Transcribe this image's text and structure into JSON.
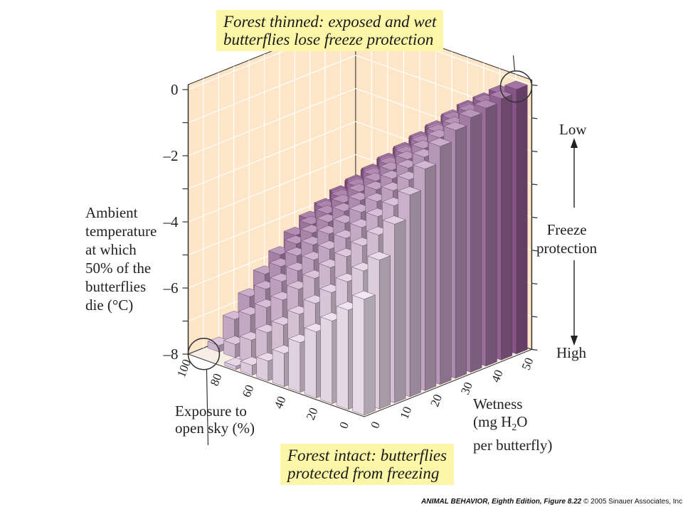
{
  "chart_data": {
    "type": "bar3d",
    "title": "",
    "y_axis": {
      "label_lines": [
        "Ambient",
        "temperature",
        "at which",
        "50% of the",
        "butterflies",
        "die (°C)"
      ],
      "ticks": [
        "0",
        "–2",
        "–4",
        "–6",
        "–8"
      ],
      "range": [
        -8,
        0
      ]
    },
    "x_axis": {
      "label_lines": [
        "Exposure to",
        "open sky (%)"
      ],
      "ticks": [
        "100",
        "80",
        "60",
        "40",
        "20",
        "0"
      ],
      "categories": [
        100,
        90,
        80,
        70,
        60,
        50,
        40,
        30,
        20,
        10,
        0
      ]
    },
    "z_axis": {
      "label_lines": [
        "Wetness",
        "(mg H",
        "2",
        "O",
        "per butterfly)"
      ],
      "ticks": [
        "0",
        "10",
        "20",
        "30",
        "40",
        "50"
      ],
      "categories": [
        0,
        5,
        10,
        15,
        20,
        25,
        30,
        35,
        40,
        45,
        50
      ]
    },
    "values_note_free": true,
    "values": [
      [
        -4.5,
        -3.5,
        -2.6,
        -1.9,
        -1.3,
        -0.8,
        -0.5,
        -0.3,
        -0.2,
        -0.1,
        0.0
      ],
      [
        -5.0,
        -4.0,
        -3.1,
        -2.4,
        -1.8,
        -1.3,
        -0.9,
        -0.7,
        -0.5,
        -0.4,
        -0.3
      ],
      [
        -5.5,
        -4.5,
        -3.6,
        -2.9,
        -2.3,
        -1.8,
        -1.4,
        -1.1,
        -0.9,
        -0.8,
        -0.7
      ],
      [
        -6.0,
        -5.0,
        -4.1,
        -3.4,
        -2.8,
        -2.3,
        -1.9,
        -1.6,
        -1.4,
        -1.2,
        -1.1
      ],
      [
        -6.5,
        -5.5,
        -4.6,
        -3.9,
        -3.3,
        -2.8,
        -2.4,
        -2.1,
        -1.9,
        -1.7,
        -1.6
      ],
      [
        -7.0,
        -6.0,
        -5.1,
        -4.4,
        -3.8,
        -3.3,
        -2.9,
        -2.6,
        -2.4,
        -2.2,
        -2.1
      ],
      [
        -7.4,
        -6.5,
        -5.6,
        -4.9,
        -4.3,
        -3.8,
        -3.4,
        -3.1,
        -2.9,
        -2.7,
        -2.6
      ],
      [
        -7.7,
        -6.9,
        -6.1,
        -5.4,
        -4.8,
        -4.3,
        -3.9,
        -3.6,
        -3.4,
        -3.2,
        -3.1
      ],
      [
        -7.9,
        -7.3,
        -6.5,
        -5.9,
        -5.3,
        -4.8,
        -4.4,
        -4.1,
        -3.9,
        -3.7,
        -3.6
      ],
      [
        -8.0,
        -7.6,
        -6.9,
        -6.3,
        -5.8,
        -5.3,
        -4.9,
        -4.6,
        -4.4,
        -4.2,
        -4.1
      ],
      [
        -8.0,
        -7.8,
        -7.2,
        -6.7,
        -6.2,
        -5.8,
        -5.4,
        -5.1,
        -4.9,
        -4.7,
        -4.6
      ]
    ],
    "right_scale": {
      "label_lines": [
        "Freeze",
        "protection"
      ],
      "top": "Low",
      "bottom": "High"
    },
    "colors": {
      "backwall": "#fde6c8",
      "bar_low": "#f2e6f2",
      "bar_high": "#7b3f7c",
      "callout": "#fbf6a8"
    }
  },
  "callouts": {
    "top_lines": [
      "Forest thinned: exposed and wet",
      "butterflies lose freeze protection"
    ],
    "bottom_lines": [
      "Forest intact: butterflies",
      "protected from freezing"
    ]
  },
  "credit": {
    "book": "ANIMAL BEHAVIOR, Eighth Edition, Figure 8.22",
    "rest": " © 2005 Sinauer Associates, Inc."
  }
}
